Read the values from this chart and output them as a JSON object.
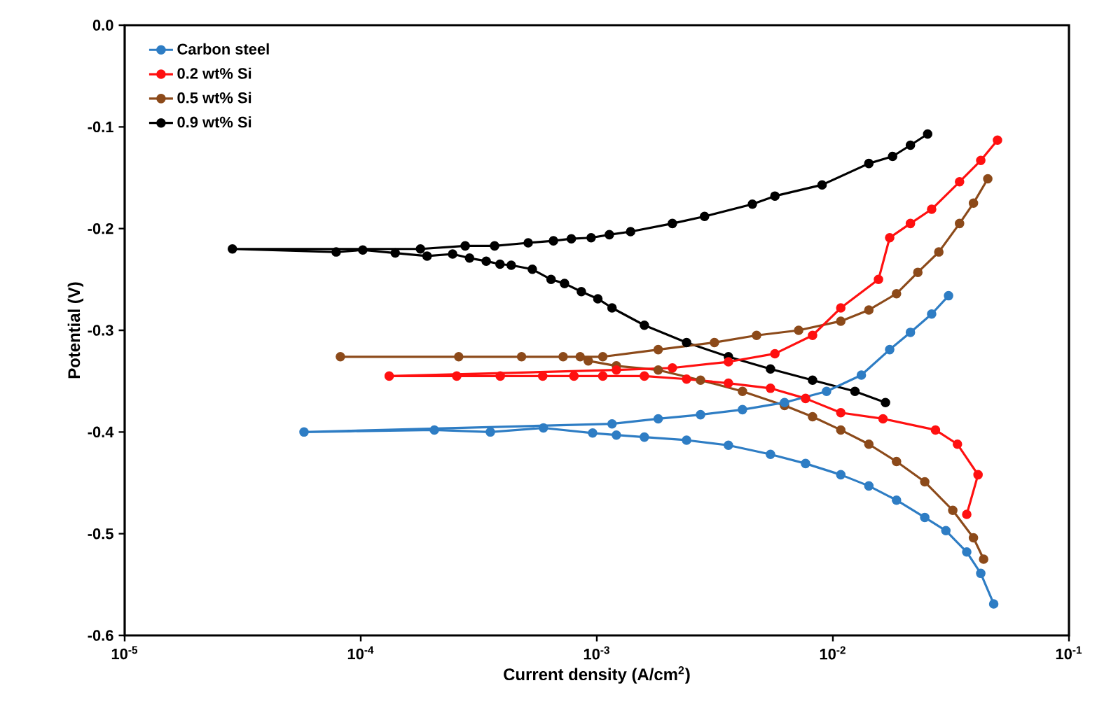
{
  "chart_data": {
    "type": "line",
    "xlabel": "Current density (A/cm$^{2}$)",
    "ylabel": "Potential (V)",
    "log": "x",
    "marker": "circle",
    "line_style": "solid",
    "legend": "top left",
    "grid": false,
    "xlim": [
      1e-05,
      0.1
    ],
    "ylim": [
      -0.6,
      0
    ],
    "xticks": [
      {
        "value": 1e-05,
        "label": "10$^{-5}$"
      },
      {
        "value": 0.0001,
        "label": "10$^{-4}$"
      },
      {
        "value": 0.001,
        "label": "10$^{-3}$"
      },
      {
        "value": 0.01,
        "label": "10$^{-2}$"
      },
      {
        "value": 0.1,
        "label": "10$^{-1}$"
      }
    ],
    "yticks": [
      {
        "value": 0,
        "label": "0.0"
      },
      -0.1,
      -0.2,
      -0.3,
      -0.4,
      -0.5,
      -0.6
    ],
    "series": [
      {
        "name": "Carbon steel",
        "color": "#2e7dc4",
        "x": [
          0.048,
          0.0423,
          0.0369,
          0.0301,
          0.0245,
          0.0186,
          0.0142,
          0.0108,
          0.00766,
          0.00544,
          0.00361,
          0.0024,
          0.00159,
          0.00121,
          0.00096,
          0.000594,
          0.000354,
          0.000205,
          5.75e-05,
          0.00116,
          0.00182,
          0.00275,
          0.00414,
          0.00624,
          0.0094,
          0.0132,
          0.0174,
          0.0213,
          0.0262,
          0.0309
        ],
        "values": [
          -0.569,
          -0.539,
          -0.518,
          -0.497,
          -0.484,
          -0.467,
          -0.453,
          -0.442,
          -0.431,
          -0.422,
          -0.413,
          -0.408,
          -0.405,
          -0.403,
          -0.401,
          -0.396,
          -0.4,
          -0.398,
          -0.4,
          -0.392,
          -0.387,
          -0.383,
          -0.378,
          -0.371,
          -0.36,
          -0.344,
          -0.319,
          -0.302,
          -0.284,
          -0.266
        ]
      },
      {
        "name": "0.2 wt% Si",
        "color": "#ff1010",
        "x": [
          0.0369,
          0.0412,
          0.0337,
          0.0272,
          0.0163,
          0.0108,
          0.00766,
          0.00544,
          0.00361,
          0.0024,
          0.00159,
          0.00106,
          0.0008,
          0.00059,
          0.00039,
          0.000255,
          0.000132,
          0.00121,
          0.00209,
          0.00361,
          0.00568,
          0.0082,
          0.0108,
          0.0156,
          0.0174,
          0.0213,
          0.0262,
          0.0344,
          0.0423,
          0.0498
        ],
        "values": [
          -0.481,
          -0.442,
          -0.412,
          -0.398,
          -0.387,
          -0.381,
          -0.367,
          -0.357,
          -0.352,
          -0.348,
          -0.345,
          -0.345,
          -0.345,
          -0.345,
          -0.345,
          -0.345,
          -0.345,
          -0.339,
          -0.337,
          -0.331,
          -0.323,
          -0.305,
          -0.278,
          -0.25,
          -0.209,
          -0.195,
          -0.181,
          -0.154,
          -0.133,
          -0.113
        ]
      },
      {
        "name": "0.5 wt% Si",
        "color": "#8c4a1a",
        "x": [
          0.0435,
          0.0394,
          0.0322,
          0.0245,
          0.0186,
          0.0142,
          0.0108,
          0.0082,
          0.00624,
          0.00414,
          0.00275,
          0.00182,
          0.00121,
          0.00092,
          0.00085,
          0.00072,
          0.00048,
          0.00026,
          8.2e-05,
          0.00106,
          0.00182,
          0.00315,
          0.00475,
          0.00716,
          0.0108,
          0.0142,
          0.0186,
          0.0229,
          0.0281,
          0.0344,
          0.0394,
          0.0453
        ],
        "values": [
          -0.525,
          -0.504,
          -0.477,
          -0.449,
          -0.429,
          -0.412,
          -0.398,
          -0.385,
          -0.374,
          -0.36,
          -0.349,
          -0.339,
          -0.335,
          -0.33,
          -0.326,
          -0.326,
          -0.326,
          -0.326,
          -0.326,
          -0.326,
          -0.319,
          -0.312,
          -0.305,
          -0.3,
          -0.291,
          -0.28,
          -0.264,
          -0.243,
          -0.223,
          -0.195,
          -0.175,
          -0.151
        ]
      },
      {
        "name": "0.9 wt% Si",
        "color": "#000000",
        "x": [
          0.0167,
          0.0124,
          0.0082,
          0.00544,
          0.00361,
          0.0024,
          0.00159,
          0.00116,
          0.00101,
          0.00086,
          0.00073,
          0.00064,
          0.000533,
          0.000434,
          0.000389,
          0.00034,
          0.000289,
          0.000245,
          0.000191,
          0.00014,
          0.000102,
          7.87e-05,
          2.86e-05,
          0.000179,
          0.000277,
          0.000369,
          0.000512,
          0.000655,
          0.00078,
          0.000946,
          0.00113,
          0.00139,
          0.00209,
          0.00286,
          0.00456,
          0.00568,
          0.009,
          0.0142,
          0.0179,
          0.0213,
          0.0252
        ],
        "values": [
          -0.371,
          -0.36,
          -0.349,
          -0.338,
          -0.326,
          -0.312,
          -0.295,
          -0.278,
          -0.269,
          -0.262,
          -0.254,
          -0.25,
          -0.24,
          -0.236,
          -0.235,
          -0.232,
          -0.229,
          -0.225,
          -0.227,
          -0.224,
          -0.221,
          -0.223,
          -0.22,
          -0.22,
          -0.217,
          -0.217,
          -0.214,
          -0.212,
          -0.21,
          -0.209,
          -0.206,
          -0.203,
          -0.195,
          -0.188,
          -0.176,
          -0.168,
          -0.157,
          -0.136,
          -0.129,
          -0.118,
          -0.107
        ]
      }
    ]
  }
}
